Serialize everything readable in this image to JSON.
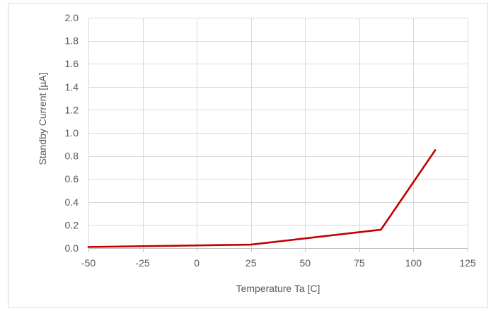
{
  "chart_data": {
    "type": "line",
    "title": "",
    "xlabel": "Temperature Ta [C]",
    "ylabel": "Standby Current [µA]",
    "xlim": [
      -50,
      125
    ],
    "ylim": [
      0.0,
      2.0
    ],
    "x_ticks": [
      "-50",
      "-25",
      "0",
      "25",
      "50",
      "75",
      "100",
      "125"
    ],
    "x_tick_values": [
      -50,
      -25,
      0,
      25,
      50,
      75,
      100,
      125
    ],
    "y_ticks": [
      "0.0",
      "0.2",
      "0.4",
      "0.6",
      "0.8",
      "1.0",
      "1.2",
      "1.4",
      "1.6",
      "1.8",
      "2.0"
    ],
    "y_tick_values": [
      0.0,
      0.2,
      0.4,
      0.6,
      0.8,
      1.0,
      1.2,
      1.4,
      1.6,
      1.8,
      2.0
    ],
    "grid": true,
    "legend": "none",
    "series": [
      {
        "color": "#c00000",
        "x": [
          -50,
          25,
          85,
          110
        ],
        "y": [
          0.01,
          0.03,
          0.16,
          0.85
        ]
      }
    ]
  },
  "colors": {
    "series": "#c00000",
    "grid": "#d9d9d9",
    "axis": "#bfbfbf",
    "text": "#595959",
    "frame": "#d9d9d9"
  }
}
